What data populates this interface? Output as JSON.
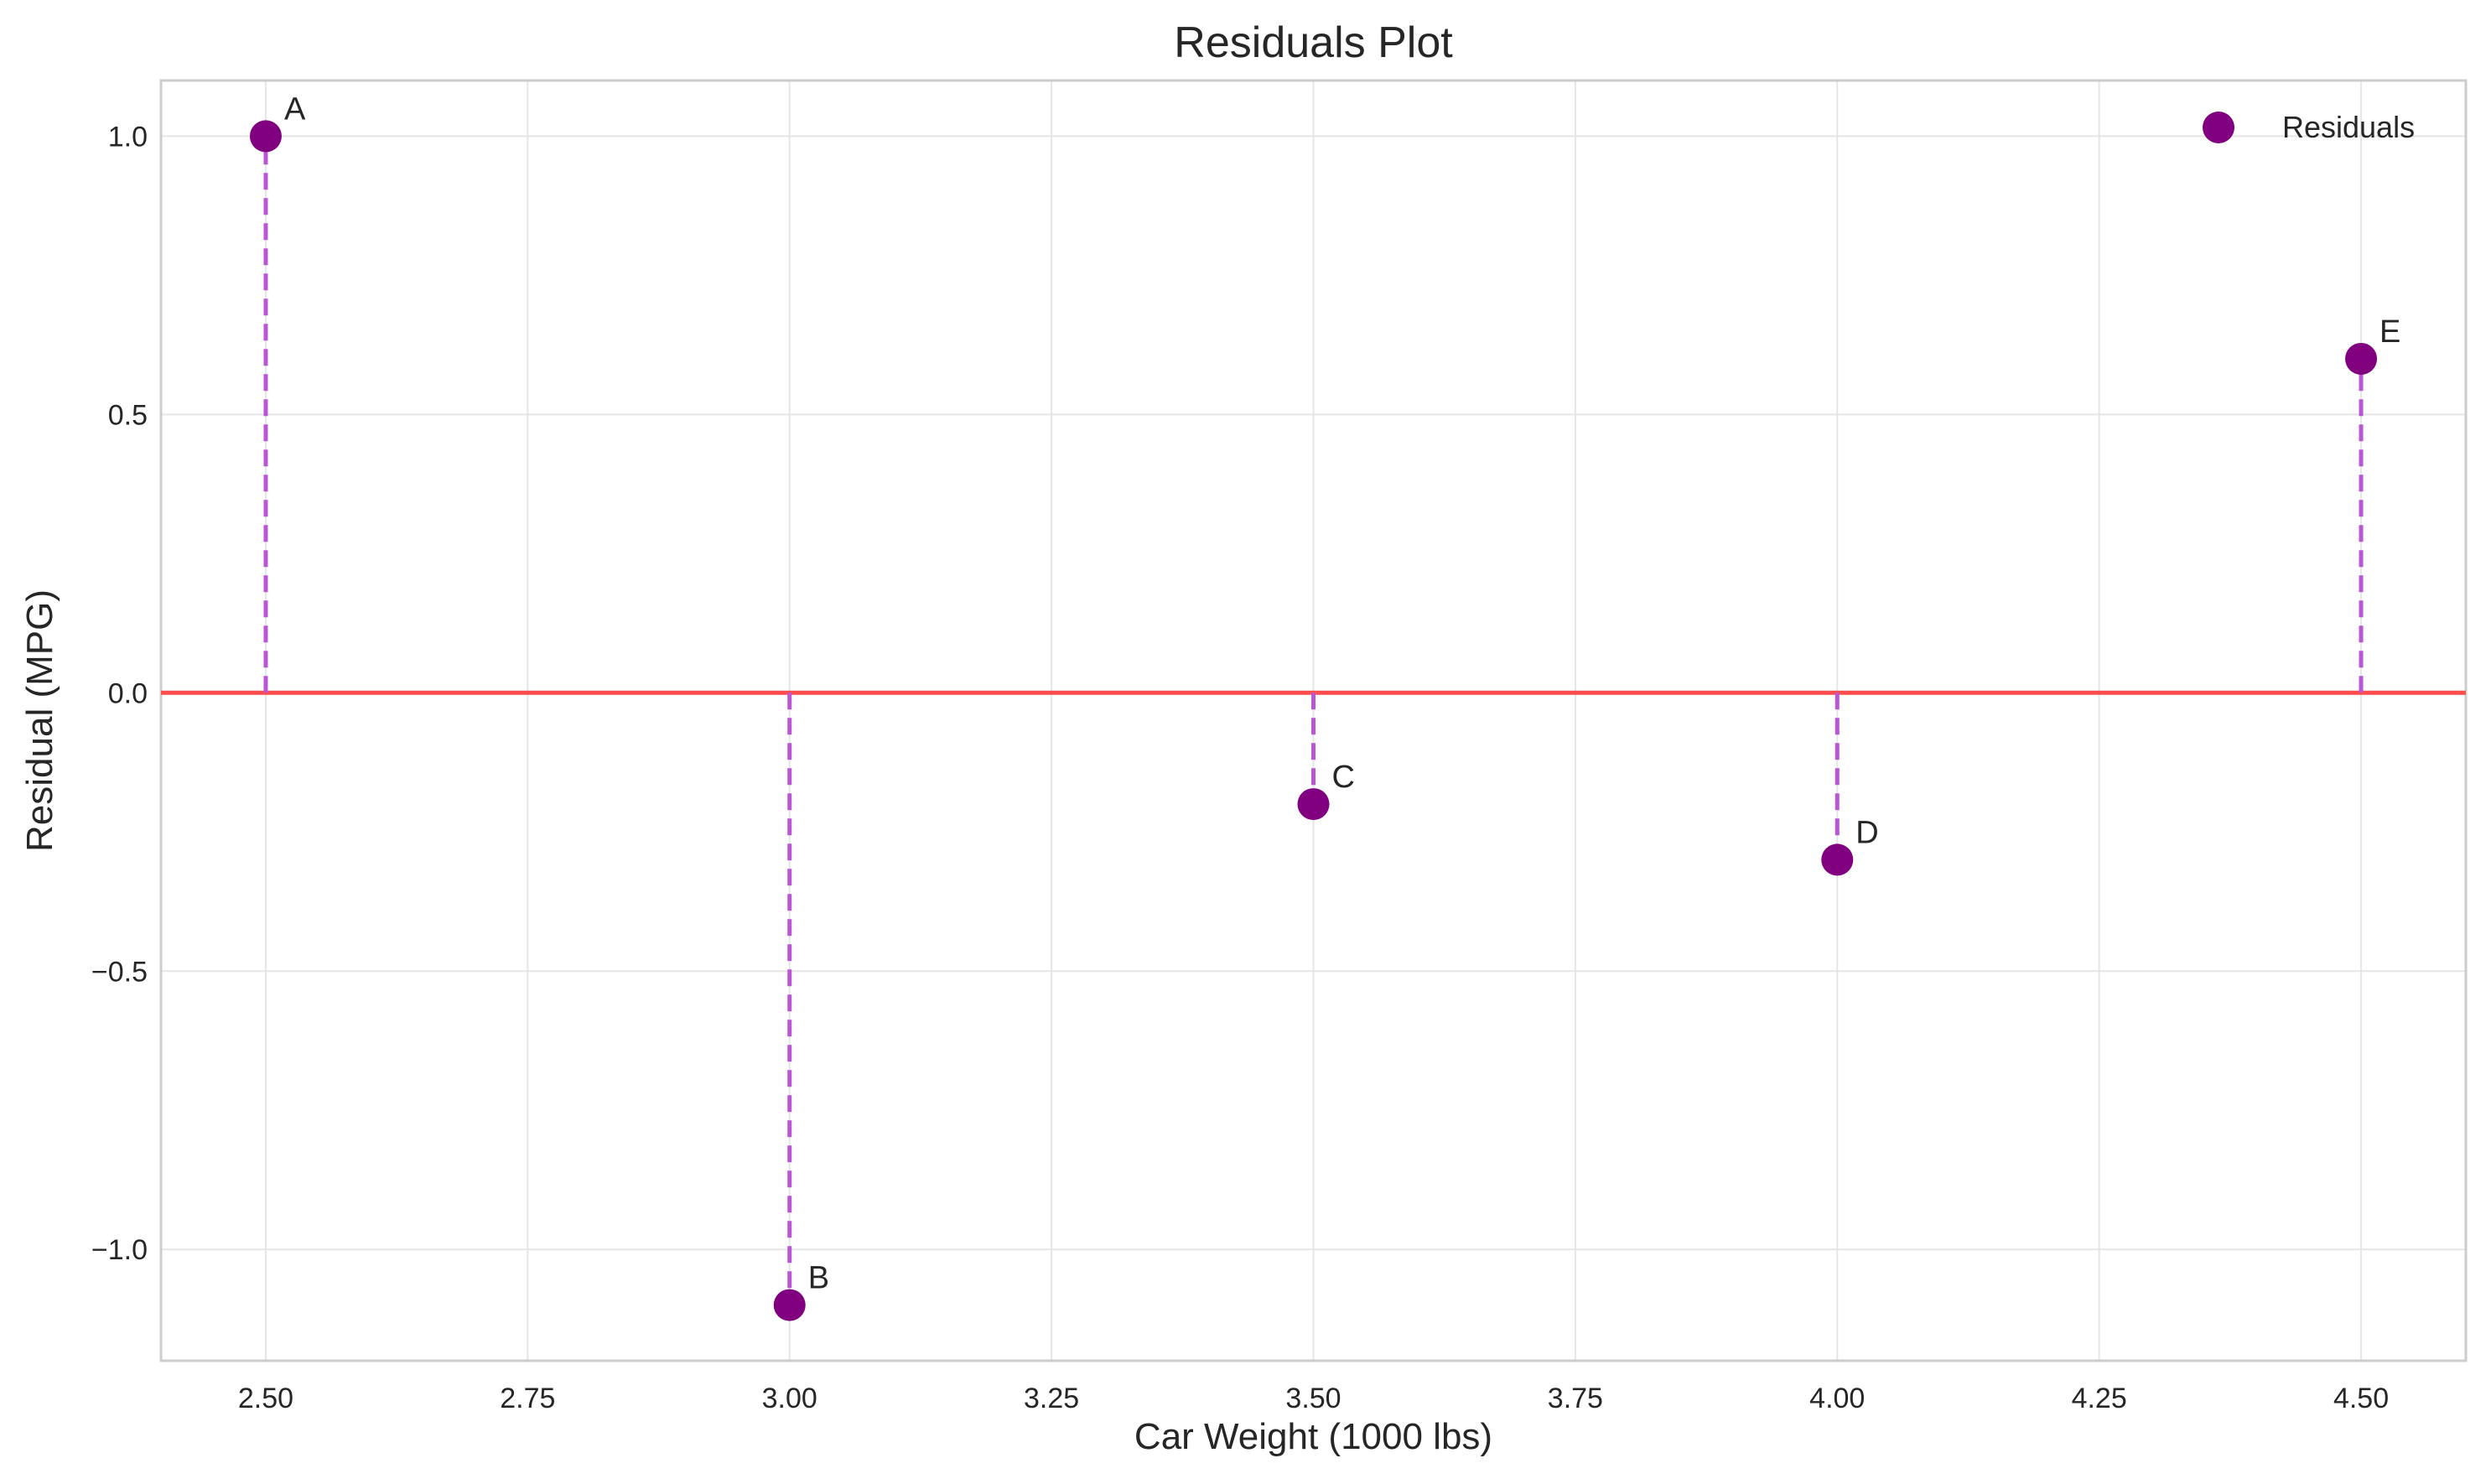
{
  "chart_data": {
    "type": "scatter",
    "title": "Residuals Plot",
    "xlabel": "Car Weight (1000 lbs)",
    "ylabel": "Residual (MPG)",
    "xlim": [
      2.4,
      4.6
    ],
    "ylim": [
      -1.2,
      1.1
    ],
    "x_ticks": [
      2.5,
      2.75,
      3.0,
      3.25,
      3.5,
      3.75,
      4.0,
      4.25,
      4.5
    ],
    "x_tick_labels": [
      "2.50",
      "2.75",
      "3.00",
      "3.25",
      "3.50",
      "3.75",
      "4.00",
      "4.25",
      "4.50"
    ],
    "y_ticks": [
      -1.0,
      -0.5,
      0.0,
      0.5,
      1.0
    ],
    "y_tick_labels": [
      "−1.0",
      "−0.5",
      "0.0",
      "0.5",
      "1.0"
    ],
    "grid": true,
    "legend_position": "top-right",
    "zero_line": 0.0,
    "stems": "dashed",
    "series": [
      {
        "name": "Residuals",
        "color": "#800080",
        "x": [
          2.5,
          3.0,
          3.5,
          4.0,
          4.5
        ],
        "y": [
          1.0,
          -1.1,
          -0.2,
          -0.3,
          0.6
        ],
        "labels": [
          "A",
          "B",
          "C",
          "D",
          "E"
        ]
      }
    ],
    "colors": {
      "points": "#800080",
      "stems": "#BA55D3",
      "zero_line": "#FF4C4C",
      "grid": "#E5E5E5",
      "axes": "#CCCCCC"
    }
  }
}
